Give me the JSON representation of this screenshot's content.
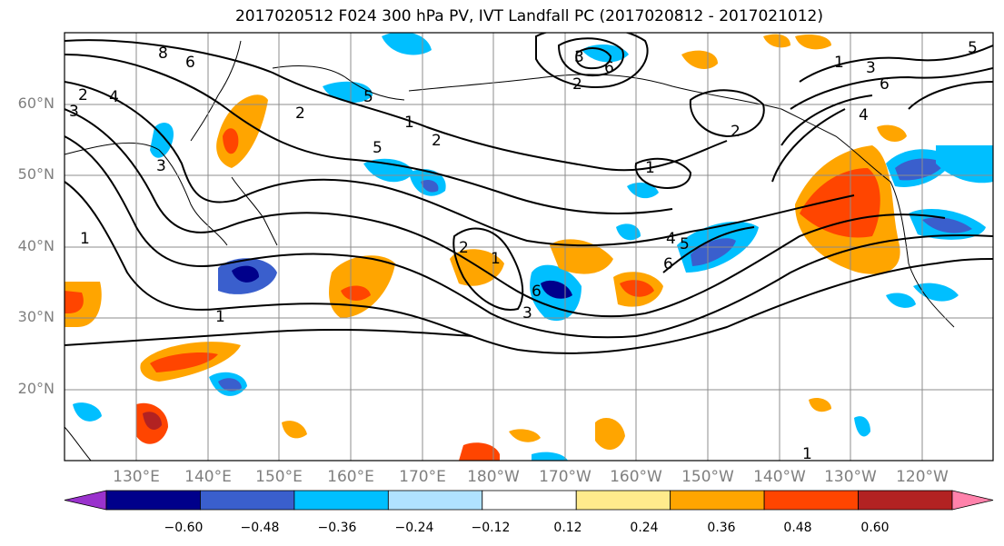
{
  "title": "2017020512 F024 300 hPa PV, IVT Landfall PC (2017020812 - 2017021012)",
  "lat_labels": [
    "60°N",
    "50°N",
    "40°N",
    "30°N",
    "20°N"
  ],
  "lon_labels": [
    "130°E",
    "140°E",
    "150°E",
    "160°E",
    "170°E",
    "180°W",
    "170°W",
    "160°W",
    "150°W",
    "140°W",
    "130°W",
    "120°W"
  ],
  "contour_labels": [
    "8",
    "6",
    "2",
    "3",
    "4",
    "2",
    "1",
    "2",
    "5",
    "3",
    "1",
    "1",
    "2",
    "1",
    "2",
    "3",
    "6",
    "4",
    "1",
    "5",
    "6",
    "3",
    "1",
    "2",
    "5",
    "3",
    "6",
    "4",
    "5",
    "6",
    "1"
  ],
  "colorbar": {
    "colors": [
      "#9a32cd",
      "#00008b",
      "#3a5fcd",
      "#00bfff",
      "#b0e2ff",
      "#ffffff",
      "#ffeb8c",
      "#ffa500",
      "#ff4500",
      "#b22222",
      "#ff82ab"
    ],
    "tick_labels": [
      "−0.60",
      "−0.48",
      "−0.36",
      "−0.24",
      "−0.12",
      "0.12",
      "0.24",
      "0.36",
      "0.48",
      "0.60"
    ]
  }
}
